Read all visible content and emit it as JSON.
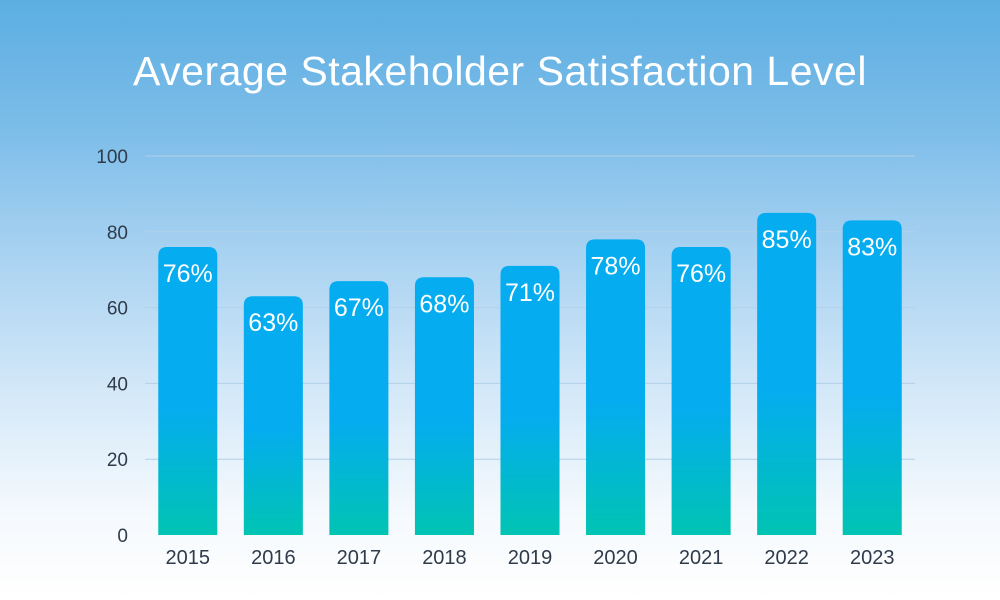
{
  "chart_data": {
    "type": "bar",
    "title": "Average Stakeholder Satisfaction Level",
    "categories": [
      "2015",
      "2016",
      "2017",
      "2018",
      "2019",
      "2020",
      "2021",
      "2022",
      "2023"
    ],
    "values": [
      76,
      63,
      67,
      68,
      71,
      78,
      76,
      85,
      83
    ],
    "data_labels": [
      "76%",
      "63%",
      "67%",
      "68%",
      "71%",
      "78%",
      "76%",
      "85%",
      "83%"
    ],
    "ylim": [
      0,
      100
    ],
    "yticks": [
      0,
      20,
      40,
      60,
      80,
      100
    ],
    "grid": true,
    "bar_gradient": [
      "#05acf0",
      "#00c4b3"
    ]
  }
}
